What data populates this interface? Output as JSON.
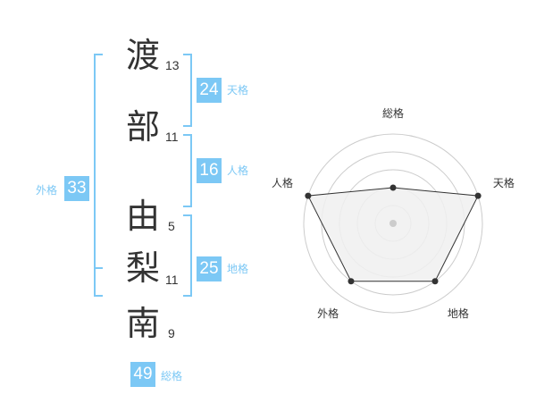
{
  "name": {
    "chars": [
      {
        "char": "渡",
        "strokes": "13"
      },
      {
        "char": "部",
        "strokes": "11"
      },
      {
        "char": "由",
        "strokes": "5"
      },
      {
        "char": "梨",
        "strokes": "11"
      },
      {
        "char": "南",
        "strokes": "9"
      }
    ]
  },
  "kaku": {
    "tenkaku": {
      "label": "天格",
      "value": "24"
    },
    "jinkaku": {
      "label": "人格",
      "value": "16"
    },
    "chikaku": {
      "label": "地格",
      "value": "25"
    },
    "gaikaku": {
      "label": "外格",
      "value": "33"
    },
    "soukaku": {
      "label": "総格",
      "value": "49"
    }
  },
  "chart_data": {
    "type": "radar",
    "axes": [
      "総格",
      "天格",
      "地格",
      "外格",
      "人格"
    ],
    "values": [
      2,
      5,
      4,
      4,
      5
    ],
    "range": [
      0,
      5
    ],
    "rings": 5,
    "colors": {
      "fill": "#f0f0f0",
      "line": "#333333",
      "grid": "#cccccc"
    }
  },
  "colors": {
    "accent": "#7cc8f5"
  }
}
